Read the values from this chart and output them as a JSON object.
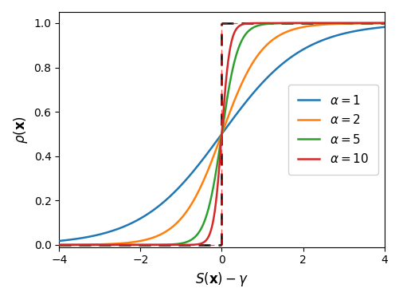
{
  "x_min": -4,
  "x_max": 4,
  "alphas": [
    1,
    2,
    5,
    10
  ],
  "line_colors": [
    "#1f77b4",
    "#ff7f0e",
    "#2ca02c",
    "#d62728"
  ],
  "xlabel": "$S(\\mathbf{x})-\\gamma$",
  "ylabel": "$\\rho(\\mathbf{x})$",
  "legend_labels": [
    "$\\alpha=1$",
    "$\\alpha=2$",
    "$\\alpha=5$",
    "$\\alpha=10$"
  ],
  "n_points": 2000,
  "figsize": [
    5.02,
    3.76
  ],
  "dpi": 100
}
